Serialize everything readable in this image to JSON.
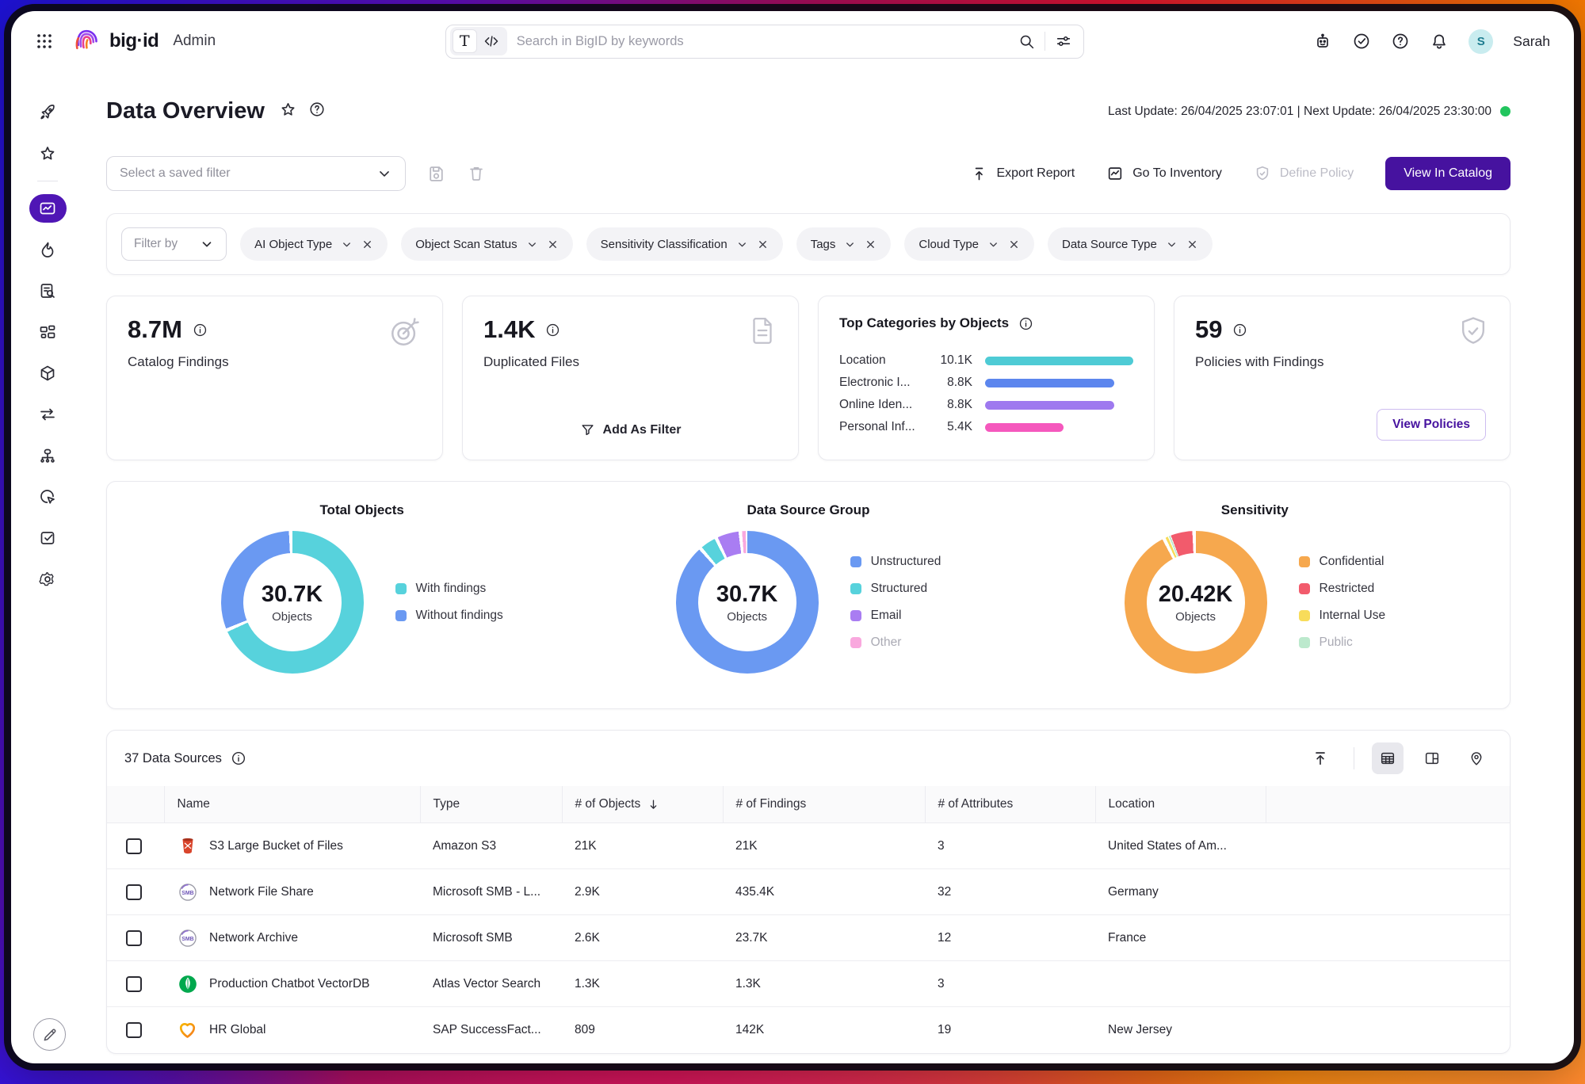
{
  "brand": {
    "name": "big·id",
    "suffix": "Admin"
  },
  "topbar": {
    "search_placeholder": "Search in BigID by keywords",
    "user_initial": "S",
    "user_name": "Sarah"
  },
  "page": {
    "title": "Data Overview",
    "last_update": "Last Update: 26/04/2025 23:07:01 | Next Update: 26/04/2025 23:30:00"
  },
  "filterbar": {
    "saved_filter": "Select a saved filter",
    "export": "Export Report",
    "inventory": "Go To Inventory",
    "define_policy": "Define Policy",
    "view_catalog": "View In Catalog"
  },
  "chips": {
    "filter_by": "Filter by",
    "items": [
      "AI Object Type",
      "Object Scan Status",
      "Sensitivity Classification",
      "Tags",
      "Cloud Type",
      "Data Source Type"
    ]
  },
  "cards": {
    "catalog_findings": {
      "value": "8.7M",
      "label": "Catalog Findings"
    },
    "duplicated_files": {
      "value": "1.4K",
      "label": "Duplicated Files",
      "action": "Add As Filter"
    },
    "top_categories": {
      "title": "Top Categories by Objects",
      "rows": [
        {
          "label": "Location",
          "value": "10.1K",
          "pct": 100,
          "color": "#4ECBD5"
        },
        {
          "label": "Electronic I...",
          "value": "8.8K",
          "pct": 87,
          "color": "#5C86EE"
        },
        {
          "label": "Online Iden...",
          "value": "8.8K",
          "pct": 87,
          "color": "#9E79EF"
        },
        {
          "label": "Personal Inf...",
          "value": "5.4K",
          "pct": 53,
          "color": "#F558BD"
        }
      ]
    },
    "policies": {
      "value": "59",
      "label": "Policies with Findings",
      "action": "View Policies"
    }
  },
  "chart_data": [
    {
      "type": "pie",
      "title": "Total Objects",
      "center": "30.7K Objects",
      "series": [
        {
          "name": "With findings",
          "value": 69
        },
        {
          "name": "Without findings",
          "value": 31
        }
      ]
    },
    {
      "type": "pie",
      "title": "Data Source Group",
      "center": "30.7K Objects",
      "series": [
        {
          "name": "Unstructured",
          "value": 89
        },
        {
          "name": "Structured",
          "value": 4.2
        },
        {
          "name": "Email",
          "value": 5.6
        },
        {
          "name": "Other",
          "value": 1.2
        }
      ]
    },
    {
      "type": "pie",
      "title": "Sensitivity",
      "center": "20.42K Objects",
      "series": [
        {
          "name": "Confidential",
          "value": 93
        },
        {
          "name": "Internal Use",
          "value": 0.8
        },
        {
          "name": "Public",
          "value": 0.5
        },
        {
          "name": "Restricted",
          "value": 5.7
        }
      ]
    },
    {
      "type": "bar",
      "title": "Top Categories by Objects",
      "categories": [
        "Location",
        "Electronic I...",
        "Online Iden...",
        "Personal Inf..."
      ],
      "values": [
        "10.1K",
        "8.8K",
        "8.8K",
        "5.4K"
      ]
    }
  ],
  "charts": {
    "total_objects": {
      "title": "Total Objects",
      "center_value": "30.7K",
      "center_label": "Objects",
      "segments": [
        {
          "label": "With findings",
          "value": 69,
          "color": "#57D2DC"
        },
        {
          "label": "Without findings",
          "value": 31,
          "color": "#6A99F2"
        }
      ],
      "legend": [
        {
          "label": "With findings",
          "color": "#57D2DC"
        },
        {
          "label": "Without findings",
          "color": "#6A99F2"
        }
      ]
    },
    "data_source_group": {
      "title": "Data Source Group",
      "center_value": "30.7K",
      "center_label": "Objects",
      "segments": [
        {
          "label": "Unstructured",
          "value": 89,
          "color": "#6A99F2"
        },
        {
          "label": "Structured",
          "value": 4.2,
          "color": "#57D2DC"
        },
        {
          "label": "Email",
          "value": 5.6,
          "color": "#A97DF2"
        },
        {
          "label": "Other",
          "value": 1.2,
          "color": "#F9A8DE"
        }
      ],
      "legend": [
        {
          "label": "Unstructured",
          "color": "#6A99F2"
        },
        {
          "label": "Structured",
          "color": "#57D2DC"
        },
        {
          "label": "Email",
          "color": "#A97DF2"
        },
        {
          "label": "Other",
          "color": "#F9A8DE"
        }
      ]
    },
    "sensitivity": {
      "title": "Sensitivity",
      "center_value": "20.42K",
      "center_label": "Objects",
      "segments": [
        {
          "label": "Confidential",
          "value": 93,
          "color": "#F6A84E"
        },
        {
          "label": "Internal Use",
          "value": 0.8,
          "color": "#F8DC5A"
        },
        {
          "label": "Public",
          "value": 0.5,
          "color": "#BCE9CD"
        },
        {
          "label": "Restricted",
          "value": 5.7,
          "color": "#F25B6C"
        }
      ],
      "legend": [
        {
          "label": "Confidential",
          "color": "#F6A84E"
        },
        {
          "label": "Restricted",
          "color": "#F25B6C"
        },
        {
          "label": "Internal Use",
          "color": "#F8DC5A"
        },
        {
          "label": "Public",
          "color": "#BCE9CD"
        }
      ]
    }
  },
  "table": {
    "title": "37 Data Sources",
    "columns": [
      "Name",
      "Type",
      "# of Objects",
      "# of Findings",
      "# of Attributes",
      "Location"
    ],
    "rows": [
      {
        "name": "S3 Large Bucket of Files",
        "type": "Amazon S3",
        "objects": "21K",
        "findings": "21K",
        "attributes": "3",
        "location": "United States of Am..."
      },
      {
        "name": "Network File Share",
        "type": "Microsoft SMB - L...",
        "objects": "2.9K",
        "findings": "435.4K",
        "attributes": "32",
        "location": "Germany"
      },
      {
        "name": "Network Archive",
        "type": "Microsoft SMB",
        "objects": "2.6K",
        "findings": "23.7K",
        "attributes": "12",
        "location": "France"
      },
      {
        "name": "Production Chatbot VectorDB",
        "type": "Atlas Vector Search",
        "objects": "1.3K",
        "findings": "1.3K",
        "attributes": "3",
        "location": ""
      },
      {
        "name": "HR Global",
        "type": "SAP SuccessFact...",
        "objects": "809",
        "findings": "142K",
        "attributes": "19",
        "location": "New Jersey"
      }
    ]
  },
  "sidebar_icons": [
    "rocket",
    "star",
    "data-overview-chart",
    "flame",
    "document-search",
    "data-map",
    "cube",
    "exchange-arrows",
    "network",
    "cursor-click",
    "check-square",
    "gear"
  ]
}
